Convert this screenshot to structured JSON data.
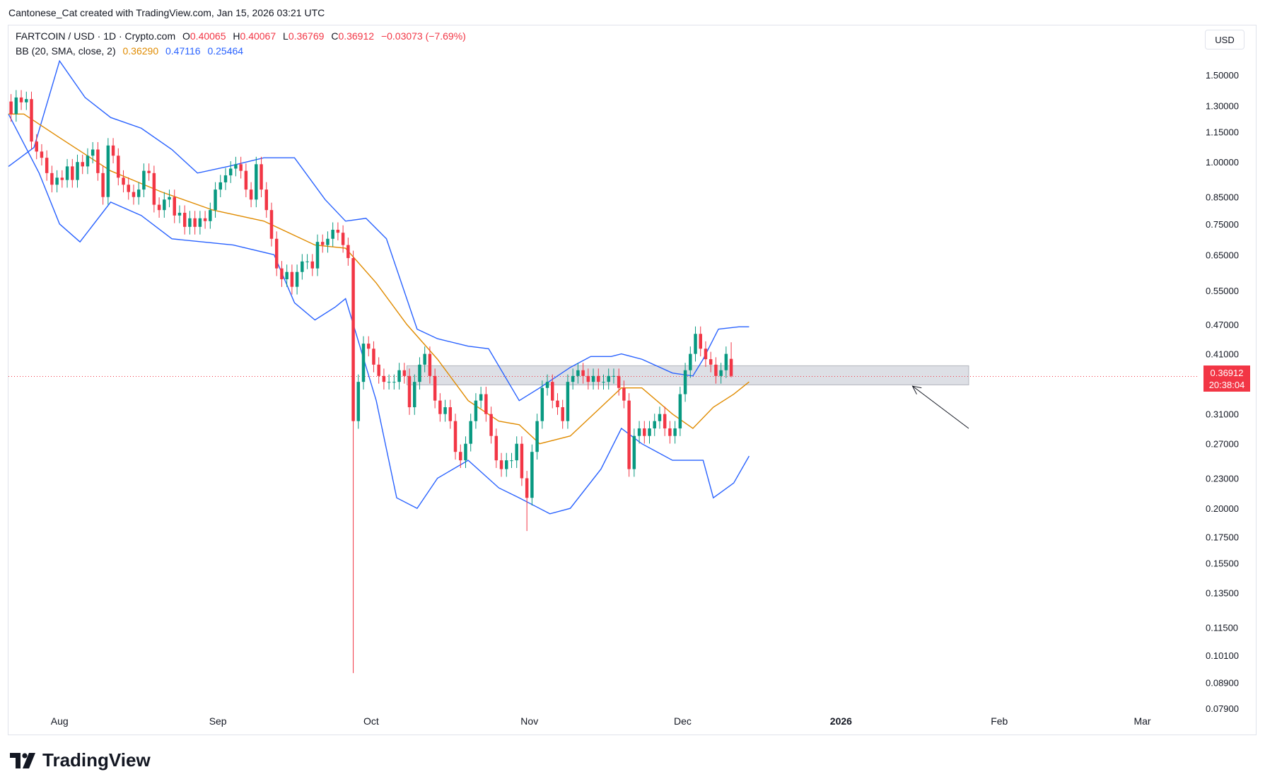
{
  "header": {
    "credit": "Cantonese_Cat created with TradingView.com, Jan 15, 2026 03:21 UTC"
  },
  "legend": {
    "symbol": "FARTCOIN / USD · 1D · Crypto.com",
    "open_label": "O",
    "open": "0.40065",
    "high_label": "H",
    "high": "0.40067",
    "low_label": "L",
    "low": "0.36769",
    "close_label": "C",
    "close": "0.36912",
    "change": "−0.03073 (−7.69%)",
    "bb_label": "BB (20, SMA, close, 2)",
    "bb_basis": "0.36290",
    "bb_upper": "0.47116",
    "bb_lower": "0.25464"
  },
  "currency_button": "USD",
  "price_badge": {
    "price": "0.36912",
    "countdown": "20:38:04"
  },
  "brand": "TradingView",
  "colors": {
    "up": "#089981",
    "down": "#f23645",
    "basis": "#e08b00",
    "bands": "#2962ff",
    "zone": "#d1d4dc"
  },
  "chart_data": {
    "type": "candlestick",
    "scale": "log",
    "ylim": [
      0.072,
      1.85
    ],
    "y_ticks": [
      1.5,
      1.3,
      1.15,
      1.0,
      0.85,
      0.75,
      0.65,
      0.55,
      0.47,
      0.41,
      0.31,
      0.27,
      0.23,
      0.2,
      0.175,
      0.155,
      0.135,
      0.115,
      0.101,
      0.089,
      0.079
    ],
    "y_tick_labels": [
      "1.50000",
      "1.30000",
      "1.15000",
      "1.00000",
      "0.85000",
      "0.75000",
      "0.65000",
      "0.55000",
      "0.47000",
      "0.41000",
      "0.31000",
      "0.27000",
      "0.23000",
      "0.20000",
      "0.17500",
      "0.15500",
      "0.13500",
      "0.11500",
      "0.10100",
      "0.08900",
      "0.07900"
    ],
    "x_start": "2025-07-22",
    "x_end": "2026-03-12",
    "x_ticks": [
      {
        "date": "2025-08-01",
        "label": "Aug"
      },
      {
        "date": "2025-09-01",
        "label": "Sep"
      },
      {
        "date": "2025-10-01",
        "label": "Oct"
      },
      {
        "date": "2025-11-01",
        "label": "Nov"
      },
      {
        "date": "2025-12-01",
        "label": "Dec"
      },
      {
        "date": "2026-01-01",
        "label": "2026"
      },
      {
        "date": "2026-02-01",
        "label": "Feb"
      },
      {
        "date": "2026-03-01",
        "label": "Mar"
      }
    ],
    "current_price": 0.36912,
    "zone": {
      "from_date": "2025-10-08",
      "to_date": "2026-01-26",
      "low": 0.355,
      "high": 0.388
    },
    "arrow": {
      "from_date": "2026-01-26",
      "from_price": 0.29,
      "to_date": "2026-01-15",
      "to_price": 0.353
    },
    "close": [
      1.25,
      1.35,
      1.32,
      1.34,
      1.1,
      1.05,
      1.02,
      0.95,
      0.9,
      0.93,
      0.92,
      0.98,
      0.92,
      1.0,
      0.98,
      1.03,
      1.06,
      0.95,
      0.85,
      1.08,
      1.03,
      0.93,
      0.9,
      0.87,
      0.85,
      0.88,
      0.96,
      0.95,
      0.82,
      0.8,
      0.84,
      0.85,
      0.78,
      0.79,
      0.74,
      0.77,
      0.74,
      0.77,
      0.76,
      0.8,
      0.88,
      0.91,
      0.94,
      0.97,
      0.99,
      0.96,
      0.88,
      0.84,
      0.99,
      0.88,
      0.8,
      0.7,
      0.61,
      0.58,
      0.6,
      0.56,
      0.6,
      0.63,
      0.63,
      0.61,
      0.69,
      0.68,
      0.7,
      0.73,
      0.72,
      0.68,
      0.64,
      0.3,
      0.36,
      0.43,
      0.42,
      0.39,
      0.37,
      0.36,
      0.36,
      0.36,
      0.38,
      0.37,
      0.32,
      0.36,
      0.39,
      0.41,
      0.37,
      0.33,
      0.31,
      0.32,
      0.3,
      0.26,
      0.25,
      0.27,
      0.3,
      0.33,
      0.34,
      0.31,
      0.28,
      0.25,
      0.24,
      0.25,
      0.25,
      0.27,
      0.23,
      0.21,
      0.26,
      0.3,
      0.35,
      0.36,
      0.33,
      0.32,
      0.3,
      0.36,
      0.37,
      0.38,
      0.37,
      0.36,
      0.37,
      0.36,
      0.36,
      0.37,
      0.37,
      0.35,
      0.33,
      0.24,
      0.28,
      0.29,
      0.28,
      0.29,
      0.3,
      0.31,
      0.29,
      0.28,
      0.29,
      0.34,
      0.38,
      0.41,
      0.45,
      0.42,
      0.4,
      0.39,
      0.37,
      0.38,
      0.41,
      0.37
    ],
    "basis": [
      [
        0,
        1.25
      ],
      [
        3,
        1.25
      ],
      [
        10,
        1.12
      ],
      [
        20,
        0.96
      ],
      [
        30,
        0.87
      ],
      [
        40,
        0.8
      ],
      [
        50,
        0.76
      ],
      [
        60,
        0.68
      ],
      [
        66,
        0.67
      ],
      [
        72,
        0.57
      ],
      [
        78,
        0.47
      ],
      [
        84,
        0.4
      ],
      [
        90,
        0.33
      ],
      [
        96,
        0.3
      ],
      [
        100,
        0.295
      ],
      [
        104,
        0.27
      ],
      [
        110,
        0.28
      ],
      [
        116,
        0.32
      ],
      [
        120,
        0.35
      ],
      [
        124,
        0.35
      ],
      [
        130,
        0.31
      ],
      [
        134,
        0.29
      ],
      [
        138,
        0.32
      ],
      [
        142,
        0.34
      ],
      [
        145,
        0.36
      ]
    ],
    "upper": [
      [
        0,
        0.98
      ],
      [
        5,
        1.07
      ],
      [
        10,
        1.6
      ],
      [
        15,
        1.35
      ],
      [
        20,
        1.23
      ],
      [
        26,
        1.17
      ],
      [
        32,
        1.06
      ],
      [
        37,
        0.95
      ],
      [
        43,
        0.98
      ],
      [
        50,
        1.02
      ],
      [
        56,
        1.02
      ],
      [
        62,
        0.84
      ],
      [
        66,
        0.76
      ],
      [
        70,
        0.77
      ],
      [
        74,
        0.7
      ],
      [
        80,
        0.46
      ],
      [
        84,
        0.44
      ],
      [
        90,
        0.425
      ],
      [
        94,
        0.42
      ],
      [
        100,
        0.33
      ],
      [
        104,
        0.35
      ],
      [
        110,
        0.385
      ],
      [
        114,
        0.405
      ],
      [
        118,
        0.405
      ],
      [
        120,
        0.41
      ],
      [
        124,
        0.4
      ],
      [
        130,
        0.375
      ],
      [
        134,
        0.37
      ],
      [
        136,
        0.4
      ],
      [
        139,
        0.46
      ],
      [
        143,
        0.465
      ],
      [
        145,
        0.465
      ]
    ],
    "lower": [
      [
        0,
        1.25
      ],
      [
        6,
        0.95
      ],
      [
        10,
        0.75
      ],
      [
        14,
        0.69
      ],
      [
        20,
        0.83
      ],
      [
        26,
        0.78
      ],
      [
        32,
        0.7
      ],
      [
        38,
        0.69
      ],
      [
        44,
        0.68
      ],
      [
        52,
        0.65
      ],
      [
        56,
        0.52
      ],
      [
        60,
        0.48
      ],
      [
        64,
        0.51
      ],
      [
        66,
        0.53
      ],
      [
        72,
        0.33
      ],
      [
        76,
        0.21
      ],
      [
        80,
        0.2
      ],
      [
        84,
        0.23
      ],
      [
        90,
        0.25
      ],
      [
        96,
        0.22
      ],
      [
        100,
        0.21
      ],
      [
        106,
        0.195
      ],
      [
        110,
        0.2
      ],
      [
        116,
        0.24
      ],
      [
        120,
        0.29
      ],
      [
        124,
        0.27
      ],
      [
        130,
        0.25
      ],
      [
        136,
        0.25
      ],
      [
        138,
        0.21
      ],
      [
        142,
        0.225
      ],
      [
        145,
        0.255
      ]
    ]
  }
}
